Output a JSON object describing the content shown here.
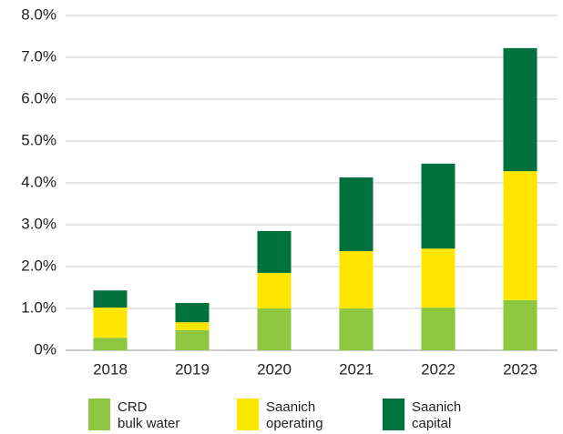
{
  "chart_data": {
    "type": "stacked_bar",
    "categories": [
      "2018",
      "2019",
      "2020",
      "2021",
      "2022",
      "2023"
    ],
    "series": [
      {
        "name": "CRD\nbulk water",
        "color": "#8dc63f",
        "values": [
          0.3,
          0.48,
          1.0,
          1.0,
          1.02,
          1.2
        ]
      },
      {
        "name": "Saanich\noperating",
        "color": "#ffe600",
        "values": [
          0.72,
          0.19,
          0.85,
          1.37,
          1.41,
          3.08
        ]
      },
      {
        "name": "Saanich\ncapital",
        "color": "#00703c",
        "values": [
          0.41,
          0.46,
          1.0,
          1.76,
          2.03,
          2.94
        ]
      }
    ],
    "ylim": [
      0,
      8
    ],
    "yticks": [
      {
        "value": 0,
        "label": "0%"
      },
      {
        "value": 1,
        "label": "1.0%"
      },
      {
        "value": 2,
        "label": "2.0%"
      },
      {
        "value": 3,
        "label": "3.0%"
      },
      {
        "value": 4,
        "label": "4.0%"
      },
      {
        "value": 5,
        "label": "5.0%"
      },
      {
        "value": 6,
        "label": "6.0%"
      },
      {
        "value": 7,
        "label": "7.0%"
      },
      {
        "value": 8,
        "label": "8.0%"
      }
    ],
    "grid": true
  }
}
